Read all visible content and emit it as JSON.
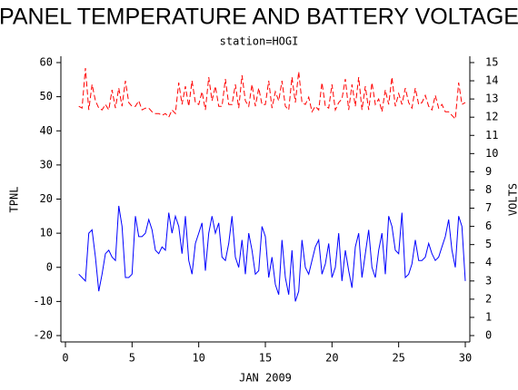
{
  "chart_data": {
    "type": "line",
    "title": "PANEL TEMPERATURE AND BATTERY VOLTAGE",
    "subtitle": "station=HOGI",
    "x_label": "JAN 2009",
    "y_label": "TPNL",
    "y2_label": "VOLTS",
    "x": [
      1,
      1.25,
      1.5,
      1.75,
      2,
      2.25,
      2.5,
      2.75,
      3,
      3.25,
      3.5,
      3.75,
      4,
      4.25,
      4.5,
      4.75,
      5,
      5.25,
      5.5,
      5.75,
      6,
      6.25,
      6.5,
      6.75,
      7,
      7.25,
      7.5,
      7.75,
      8,
      8.25,
      8.5,
      8.75,
      9,
      9.25,
      9.5,
      9.75,
      10,
      10.25,
      10.5,
      10.75,
      11,
      11.25,
      11.5,
      11.75,
      12,
      12.25,
      12.5,
      12.75,
      13,
      13.25,
      13.5,
      13.75,
      14,
      14.25,
      14.5,
      14.75,
      15,
      15.25,
      15.5,
      15.75,
      16,
      16.25,
      16.5,
      16.75,
      17,
      17.25,
      17.5,
      17.75,
      18,
      18.25,
      18.5,
      18.75,
      19,
      19.25,
      19.5,
      19.75,
      20,
      20.25,
      20.5,
      20.75,
      21,
      21.25,
      21.5,
      21.75,
      22,
      22.25,
      22.5,
      22.75,
      23,
      23.25,
      23.5,
      23.75,
      24,
      24.25,
      24.5,
      24.75,
      25,
      25.25,
      25.5,
      25.75,
      26,
      26.25,
      26.5,
      26.75,
      27,
      27.25,
      27.5,
      27.75,
      28,
      28.25,
      28.5,
      28.75,
      29,
      29.25,
      29.5,
      29.75,
      30
    ],
    "series": [
      {
        "color": "#0000ff",
        "axis": "y",
        "values": [
          -2,
          -3,
          -4,
          10,
          11,
          3,
          -7,
          -2,
          4,
          5,
          3,
          2,
          18,
          12,
          -3,
          -3,
          -2,
          15,
          9,
          9,
          10,
          14,
          11,
          5,
          4,
          6,
          5,
          16,
          10,
          15,
          12,
          4,
          15,
          2,
          -2,
          7,
          10,
          13,
          -1,
          10,
          15,
          10,
          13,
          3,
          2,
          7,
          15,
          3,
          0,
          8,
          -2,
          10,
          5,
          -2,
          -1,
          12,
          9,
          -3,
          3,
          -5,
          -8,
          8,
          -3,
          -8,
          5,
          -10,
          -7,
          8,
          0,
          -2,
          2,
          6,
          8,
          -2,
          1,
          7,
          -3,
          0,
          10,
          -4,
          5,
          -1,
          -6,
          6,
          10,
          -3,
          4,
          11,
          0,
          -3,
          5,
          10,
          -2,
          15,
          12,
          5,
          4,
          16,
          -3,
          -2,
          1,
          8,
          2,
          2,
          3,
          7,
          4,
          2,
          3,
          6,
          9,
          14,
          5,
          0,
          15,
          12,
          -4
        ]
      },
      {
        "color": "#ff0000",
        "axis": "y2",
        "dashed": true,
        "values": [
          12.6,
          12.5,
          14.7,
          12.4,
          13.8,
          12.9,
          12.5,
          12.4,
          12.7,
          12.4,
          13.5,
          12.5,
          13.6,
          12.6,
          14.0,
          12.8,
          12.6,
          12.6,
          12.9,
          12.4,
          12.5,
          12.5,
          12.3,
          12.2,
          12.2,
          12.1,
          12.2,
          12.0,
          12.4,
          12.2,
          13.9,
          12.7,
          13.7,
          12.6,
          14.0,
          12.8,
          12.7,
          13.4,
          12.4,
          14.2,
          12.9,
          13.7,
          12.6,
          12.6,
          14.1,
          12.7,
          12.7,
          13.8,
          12.5,
          14.3,
          12.9,
          12.6,
          13.8,
          12.6,
          13.6,
          12.7,
          12.7,
          14.0,
          12.5,
          13.4,
          12.9,
          14.0,
          12.6,
          12.4,
          14.2,
          12.8,
          14.5,
          12.8,
          12.7,
          13.1,
          12.3,
          12.6,
          12.4,
          13.9,
          12.6,
          12.5,
          13.8,
          12.4,
          12.8,
          13.0,
          14.1,
          12.4,
          13.8,
          12.6,
          14.2,
          12.4,
          13.7,
          12.4,
          13.9,
          12.7,
          13.0,
          12.3,
          13.5,
          12.7,
          14.2,
          12.6,
          13.3,
          12.7,
          13.6,
          12.8,
          12.5,
          13.6,
          12.7,
          12.8,
          13.2,
          12.6,
          12.4,
          13.2,
          12.5,
          12.7,
          12.3,
          12.3,
          12.1,
          11.9,
          13.9,
          12.7,
          12.8
        ]
      }
    ],
    "xlim": [
      0,
      30
    ],
    "xticks": [
      0,
      5,
      10,
      15,
      20,
      25,
      30
    ],
    "ylim": [
      -20,
      60
    ],
    "yticks": [
      -20,
      -10,
      0,
      10,
      20,
      30,
      40,
      50,
      60
    ],
    "y2lim": [
      0,
      15
    ],
    "y2ticks": [
      0,
      1,
      2,
      3,
      4,
      5,
      6,
      7,
      8,
      9,
      10,
      11,
      12,
      13,
      14,
      15
    ],
    "grid": false
  }
}
